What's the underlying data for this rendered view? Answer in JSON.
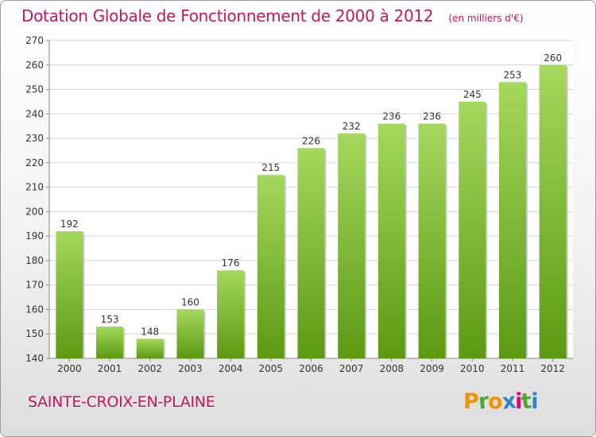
{
  "header": {
    "title": "Dotation Globale de Fonctionnement de 2000 à 2012",
    "unit": "(en milliers d'€)"
  },
  "footer": {
    "commune": "SAINTE-CROIX-EN-PLAINE",
    "brand": "Proxiti",
    "brand_colors": [
      "#f39200",
      "#4fa535",
      "#f39200",
      "#2f82c4",
      "#e2007a",
      "#4fa535",
      "#2f82c4"
    ]
  },
  "colors": {
    "bar_light": "#a4d85e",
    "bar_dark": "#5c9a12",
    "accent": "#c0185e",
    "axis": "#888888"
  },
  "chart_data": {
    "type": "bar",
    "title": "Dotation Globale de Fonctionnement de 2000 à 2012",
    "subtitle": "(en milliers d'€)",
    "xlabel": "",
    "ylabel": "",
    "categories": [
      "2000",
      "2001",
      "2002",
      "2003",
      "2004",
      "2005",
      "2006",
      "2007",
      "2008",
      "2009",
      "2010",
      "2011",
      "2012"
    ],
    "values": [
      192,
      153,
      148,
      160,
      176,
      215,
      226,
      232,
      236,
      236,
      245,
      253,
      260
    ],
    "ylim": [
      140,
      270
    ],
    "yticks": [
      140,
      150,
      160,
      170,
      180,
      190,
      200,
      210,
      220,
      230,
      240,
      250,
      260,
      270
    ],
    "grid": "horizontal",
    "data_labels": true
  }
}
